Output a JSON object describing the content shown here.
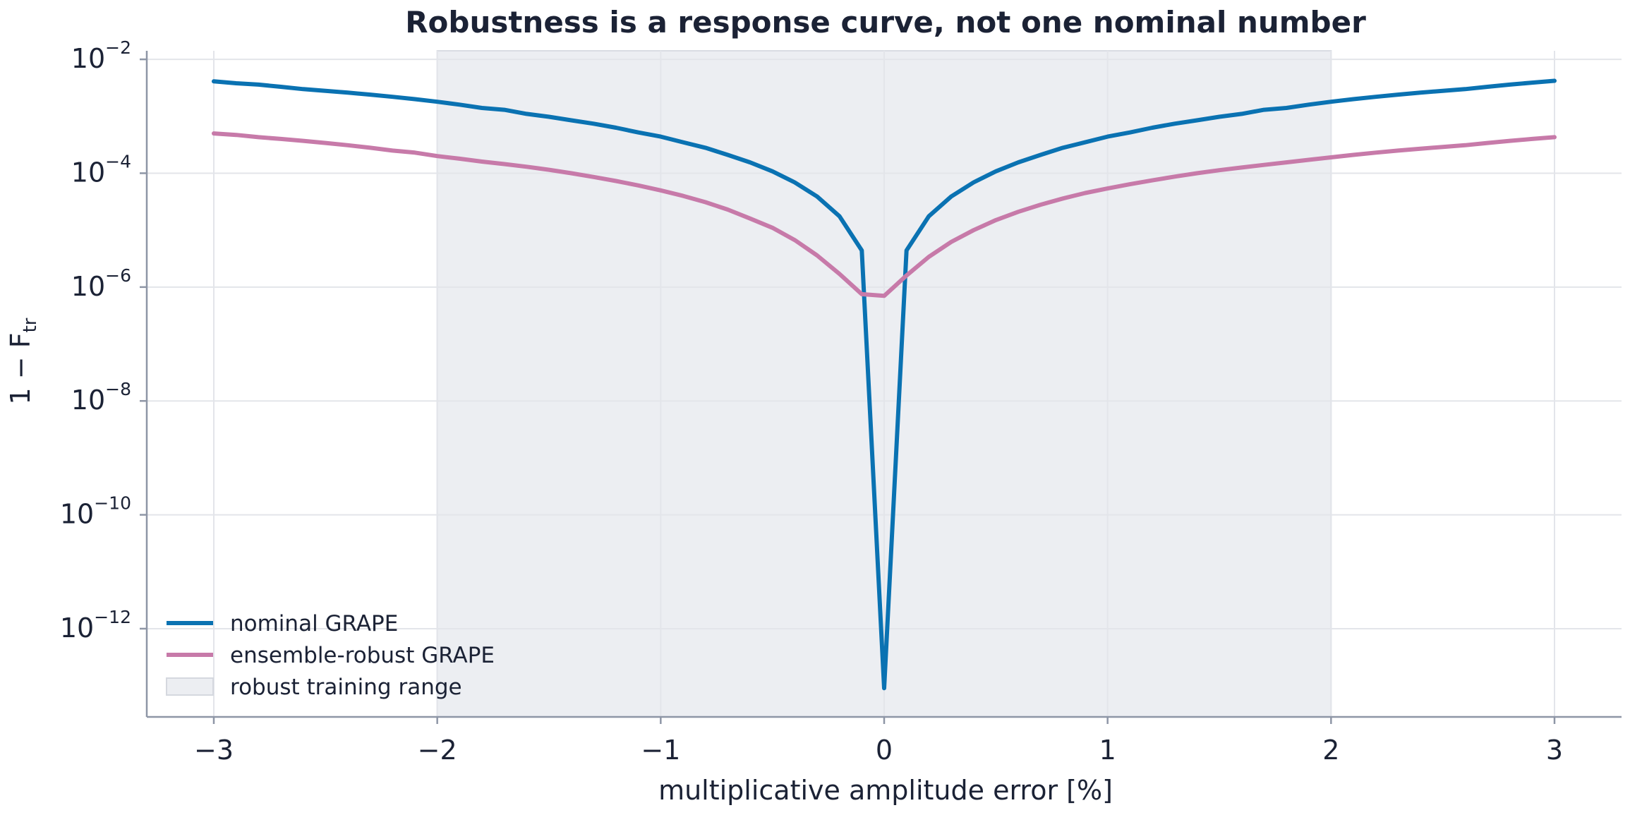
{
  "chart_data": {
    "type": "line",
    "title": "Robustness is a response curve, not one nominal number",
    "xlabel": "multiplicative amplitude error [%]",
    "ylabel_main": "1 − F",
    "ylabel_sub": "tr",
    "yscale": "log",
    "xlim": [
      -3.3,
      3.3
    ],
    "ylim_exp": [
      -13.55,
      -1.85
    ],
    "xticks": [
      {
        "value": -3,
        "label": "−3"
      },
      {
        "value": -2,
        "label": "−2"
      },
      {
        "value": -1,
        "label": "−1"
      },
      {
        "value": 0,
        "label": "0"
      },
      {
        "value": 1,
        "label": "1"
      },
      {
        "value": 2,
        "label": "2"
      },
      {
        "value": 3,
        "label": "3"
      }
    ],
    "yticks": [
      {
        "exp": -2,
        "base": "10",
        "sup": "−2"
      },
      {
        "exp": -4,
        "base": "10",
        "sup": "−4"
      },
      {
        "exp": -6,
        "base": "10",
        "sup": "−6"
      },
      {
        "exp": -8,
        "base": "10",
        "sup": "−8"
      },
      {
        "exp": -10,
        "base": "10",
        "sup": "−10"
      },
      {
        "exp": -12,
        "base": "10",
        "sup": "−12"
      }
    ],
    "grid": true,
    "legend_position": "lower-left",
    "shaded_range": {
      "name": "robust training range",
      "x": [
        -2,
        2
      ],
      "color": "#eceef2"
    },
    "x": [
      -3.0,
      -2.9,
      -2.8,
      -2.7,
      -2.6,
      -2.5,
      -2.4,
      -2.3,
      -2.2,
      -2.1,
      -2.0,
      -1.9,
      -1.8,
      -1.7,
      -1.6,
      -1.5,
      -1.4,
      -1.3,
      -1.2,
      -1.1,
      -1.0,
      -0.9,
      -0.8,
      -0.7,
      -0.6,
      -0.5,
      -0.4,
      -0.3,
      -0.2,
      -0.1,
      0.0,
      0.1,
      0.2,
      0.3,
      0.4,
      0.5,
      0.6,
      0.7,
      0.8,
      0.9,
      1.0,
      1.1,
      1.2,
      1.3,
      1.4,
      1.5,
      1.6,
      1.7,
      1.8,
      1.9,
      2.0,
      2.1,
      2.2,
      2.3,
      2.4,
      2.5,
      2.6,
      2.7,
      2.8,
      2.9,
      3.0
    ],
    "series": [
      {
        "name": "nominal GRAPE",
        "color": "#0a72b2",
        "y": [
          0.0041,
          0.0038,
          0.0036,
          0.0033,
          0.003,
          0.0028,
          0.0026,
          0.0024,
          0.0022,
          0.002,
          0.0018,
          0.0016,
          0.0014,
          0.0013,
          0.0011,
          0.00098,
          0.00085,
          0.00074,
          0.00063,
          0.00052,
          0.00044,
          0.00035,
          0.00028,
          0.00021,
          0.000155,
          0.000108,
          6.9e-05,
          3.9e-05,
          1.75e-05,
          4.4e-06,
          9e-14,
          4.4e-06,
          1.75e-05,
          3.9e-05,
          6.9e-05,
          0.000108,
          0.000155,
          0.00021,
          0.00028,
          0.00035,
          0.00044,
          0.00052,
          0.00063,
          0.00074,
          0.00085,
          0.00098,
          0.0011,
          0.0013,
          0.0014,
          0.0016,
          0.0018,
          0.002,
          0.0022,
          0.0024,
          0.0026,
          0.0028,
          0.003,
          0.0033,
          0.0036,
          0.0039,
          0.0042
        ]
      },
      {
        "name": "ensemble-robust GRAPE",
        "color": "#c77aa9",
        "y": [
          0.0005,
          0.00047,
          0.00043,
          0.0004,
          0.00037,
          0.00034,
          0.00031,
          0.00028,
          0.00025,
          0.00023,
          0.0002,
          0.00018,
          0.00016,
          0.000145,
          0.00013,
          0.000115,
          0.0001,
          8.6e-05,
          7.3e-05,
          6.1e-05,
          5e-05,
          4e-05,
          3.1e-05,
          2.3e-05,
          1.6e-05,
          1.1e-05,
          6.7e-06,
          3.6e-06,
          1.7e-06,
          7.5e-07,
          7e-07,
          1.6e-06,
          3.4e-06,
          6.2e-06,
          1e-05,
          1.5e-05,
          2.1e-05,
          2.8e-05,
          3.6e-05,
          4.5e-05,
          5.4e-05,
          6.4e-05,
          7.5e-05,
          8.7e-05,
          0.0001,
          0.000113,
          0.000126,
          0.00014,
          0.000155,
          0.000172,
          0.00019,
          0.00021,
          0.00023,
          0.00025,
          0.00027,
          0.00029,
          0.00031,
          0.00034,
          0.00037,
          0.0004,
          0.00043
        ]
      }
    ]
  }
}
